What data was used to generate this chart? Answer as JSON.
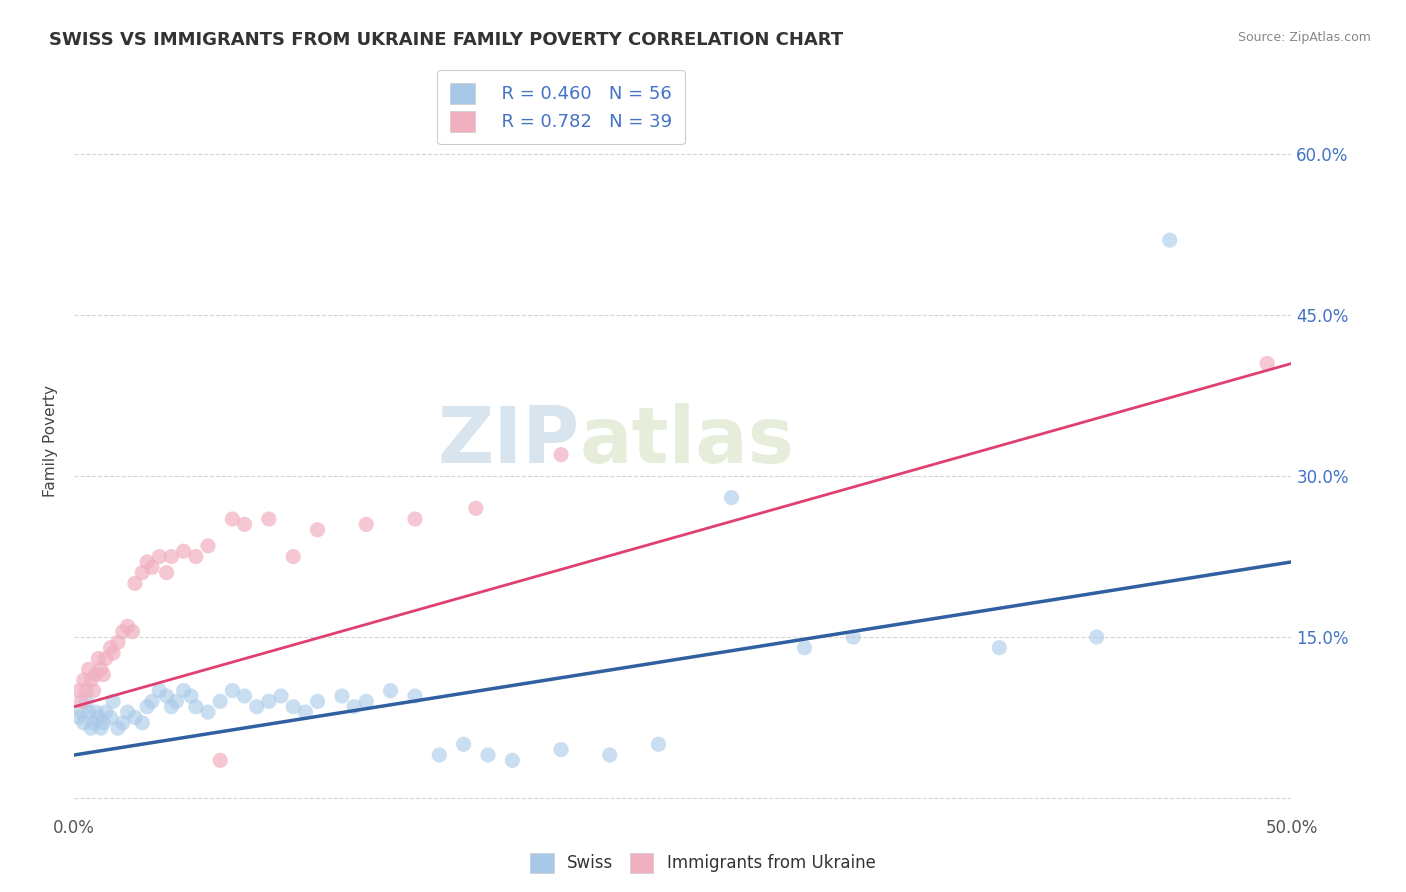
{
  "title": "SWISS VS IMMIGRANTS FROM UKRAINE FAMILY POVERTY CORRELATION CHART",
  "source": "Source: ZipAtlas.com",
  "ylabel": "Family Poverty",
  "xlim": [
    0.0,
    0.5
  ],
  "ylim": [
    -0.015,
    0.68
  ],
  "yticks": [
    0.0,
    0.15,
    0.3,
    0.45,
    0.6
  ],
  "ytick_labels": [
    "",
    "15.0%",
    "30.0%",
    "45.0%",
    "60.0%"
  ],
  "xticks": [
    0.0,
    0.5
  ],
  "xtick_labels": [
    "0.0%",
    "50.0%"
  ],
  "background_color": "#ffffff",
  "grid_color": "#cccccc",
  "watermark_zip": "ZIP",
  "watermark_atlas": "atlas",
  "swiss_color": "#a8c8e8",
  "ukraine_color": "#f0b0c0",
  "swiss_line_color": "#3060a0",
  "ukraine_line_color": "#e04070",
  "legend_swiss_R": "0.460",
  "legend_swiss_N": "56",
  "legend_ukraine_R": "0.782",
  "legend_ukraine_N": "39",
  "swiss_line_x0": 0.0,
  "swiss_line_y0": 0.04,
  "swiss_line_x1": 0.5,
  "swiss_line_y1": 0.22,
  "ukraine_line_x0": 0.0,
  "ukraine_line_y0": 0.085,
  "ukraine_line_x1": 0.5,
  "ukraine_line_y1": 0.405,
  "swiss_points": [
    [
      0.002,
      0.075
    ],
    [
      0.003,
      0.08
    ],
    [
      0.004,
      0.07
    ],
    [
      0.005,
      0.09
    ],
    [
      0.006,
      0.08
    ],
    [
      0.007,
      0.065
    ],
    [
      0.008,
      0.07
    ],
    [
      0.009,
      0.08
    ],
    [
      0.01,
      0.075
    ],
    [
      0.011,
      0.065
    ],
    [
      0.012,
      0.07
    ],
    [
      0.013,
      0.08
    ],
    [
      0.015,
      0.075
    ],
    [
      0.016,
      0.09
    ],
    [
      0.018,
      0.065
    ],
    [
      0.02,
      0.07
    ],
    [
      0.022,
      0.08
    ],
    [
      0.025,
      0.075
    ],
    [
      0.028,
      0.07
    ],
    [
      0.03,
      0.085
    ],
    [
      0.032,
      0.09
    ],
    [
      0.035,
      0.1
    ],
    [
      0.038,
      0.095
    ],
    [
      0.04,
      0.085
    ],
    [
      0.042,
      0.09
    ],
    [
      0.045,
      0.1
    ],
    [
      0.048,
      0.095
    ],
    [
      0.05,
      0.085
    ],
    [
      0.055,
      0.08
    ],
    [
      0.06,
      0.09
    ],
    [
      0.065,
      0.1
    ],
    [
      0.07,
      0.095
    ],
    [
      0.075,
      0.085
    ],
    [
      0.08,
      0.09
    ],
    [
      0.085,
      0.095
    ],
    [
      0.09,
      0.085
    ],
    [
      0.095,
      0.08
    ],
    [
      0.1,
      0.09
    ],
    [
      0.11,
      0.095
    ],
    [
      0.115,
      0.085
    ],
    [
      0.12,
      0.09
    ],
    [
      0.13,
      0.1
    ],
    [
      0.14,
      0.095
    ],
    [
      0.15,
      0.04
    ],
    [
      0.16,
      0.05
    ],
    [
      0.17,
      0.04
    ],
    [
      0.18,
      0.035
    ],
    [
      0.2,
      0.045
    ],
    [
      0.22,
      0.04
    ],
    [
      0.24,
      0.05
    ],
    [
      0.27,
      0.28
    ],
    [
      0.3,
      0.14
    ],
    [
      0.32,
      0.15
    ],
    [
      0.38,
      0.14
    ],
    [
      0.42,
      0.15
    ],
    [
      0.45,
      0.52
    ]
  ],
  "ukraine_points": [
    [
      0.002,
      0.1
    ],
    [
      0.003,
      0.09
    ],
    [
      0.004,
      0.11
    ],
    [
      0.005,
      0.1
    ],
    [
      0.006,
      0.12
    ],
    [
      0.007,
      0.11
    ],
    [
      0.008,
      0.1
    ],
    [
      0.009,
      0.115
    ],
    [
      0.01,
      0.13
    ],
    [
      0.011,
      0.12
    ],
    [
      0.012,
      0.115
    ],
    [
      0.013,
      0.13
    ],
    [
      0.015,
      0.14
    ],
    [
      0.016,
      0.135
    ],
    [
      0.018,
      0.145
    ],
    [
      0.02,
      0.155
    ],
    [
      0.022,
      0.16
    ],
    [
      0.024,
      0.155
    ],
    [
      0.025,
      0.2
    ],
    [
      0.028,
      0.21
    ],
    [
      0.03,
      0.22
    ],
    [
      0.032,
      0.215
    ],
    [
      0.035,
      0.225
    ],
    [
      0.038,
      0.21
    ],
    [
      0.04,
      0.225
    ],
    [
      0.045,
      0.23
    ],
    [
      0.05,
      0.225
    ],
    [
      0.055,
      0.235
    ],
    [
      0.065,
      0.26
    ],
    [
      0.07,
      0.255
    ],
    [
      0.08,
      0.26
    ],
    [
      0.09,
      0.225
    ],
    [
      0.1,
      0.25
    ],
    [
      0.12,
      0.255
    ],
    [
      0.14,
      0.26
    ],
    [
      0.06,
      0.035
    ],
    [
      0.165,
      0.27
    ],
    [
      0.2,
      0.32
    ],
    [
      0.49,
      0.405
    ]
  ],
  "swiss_marker_size": 120,
  "ukraine_marker_size": 120
}
